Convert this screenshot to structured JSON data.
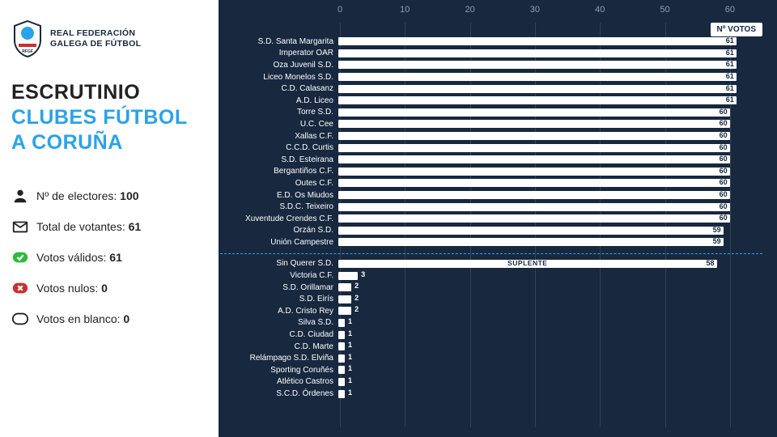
{
  "org": {
    "line1": "REAL FEDERACIÓN",
    "line2": "GALEGA DE FÚTBOL"
  },
  "title": {
    "line1": "ESCRUTINIO",
    "line2": "CLUBES FÚTBOL",
    "line3": "A CORUÑA"
  },
  "stats": {
    "electores": {
      "label": "Nº de electores:",
      "value": "100"
    },
    "votantes": {
      "label": "Total de votantes:",
      "value": "61"
    },
    "validos": {
      "label": "Votos válidos:",
      "value": "61"
    },
    "nulos": {
      "label": "Votos nulos:",
      "value": "0"
    },
    "blanco": {
      "label": "Votos en blanco:",
      "value": "0"
    }
  },
  "chart": {
    "badge": "Nº VOTOS",
    "suplente_label": "SUPLENTE",
    "max": 65,
    "ticks": [
      0,
      10,
      20,
      30,
      40,
      50,
      60
    ],
    "main": [
      {
        "label": "S.D. Santa Margarita",
        "value": 61
      },
      {
        "label": "Imperator OAR",
        "value": 61
      },
      {
        "label": "Oza Juvenil S.D.",
        "value": 61
      },
      {
        "label": "Liceo Monelos S.D.",
        "value": 61
      },
      {
        "label": "C.D. Calasanz",
        "value": 61
      },
      {
        "label": "A.D. Liceo",
        "value": 61
      },
      {
        "label": "Torre S.D.",
        "value": 60
      },
      {
        "label": "U.C. Cee",
        "value": 60
      },
      {
        "label": "Xallas C.F.",
        "value": 60
      },
      {
        "label": "C.C.D. Curtis",
        "value": 60
      },
      {
        "label": "S.D. Esteirana",
        "value": 60
      },
      {
        "label": "Bergantiños C.F.",
        "value": 60
      },
      {
        "label": "Outes C.F.",
        "value": 60
      },
      {
        "label": "E.D. Os Miudos",
        "value": 60
      },
      {
        "label": "S.D.C. Teixeiro",
        "value": 60
      },
      {
        "label": "Xuventude Crendes C.F.",
        "value": 60
      },
      {
        "label": "Orzán S.D.",
        "value": 59
      },
      {
        "label": "Unión Campestre",
        "value": 59
      }
    ],
    "suplente": {
      "label": "Sin Querer S.D.",
      "value": 58
    },
    "rest": [
      {
        "label": "Victoria C.F.",
        "value": 3
      },
      {
        "label": "S.D. Orillamar",
        "value": 2
      },
      {
        "label": "S.D. Eirís",
        "value": 2
      },
      {
        "label": "A.D. Cristo Rey",
        "value": 2
      },
      {
        "label": "Silva S.D.",
        "value": 1
      },
      {
        "label": "C.D. Ciudad",
        "value": 1
      },
      {
        "label": "C.D. Marte",
        "value": 1
      },
      {
        "label": "Relámpago S.D. Elviña",
        "value": 1
      },
      {
        "label": "Sporting Coruñés",
        "value": 1
      },
      {
        "label": "Atlético Castros",
        "value": 1
      },
      {
        "label": "S.C.D. Órdenes",
        "value": 1
      }
    ]
  }
}
